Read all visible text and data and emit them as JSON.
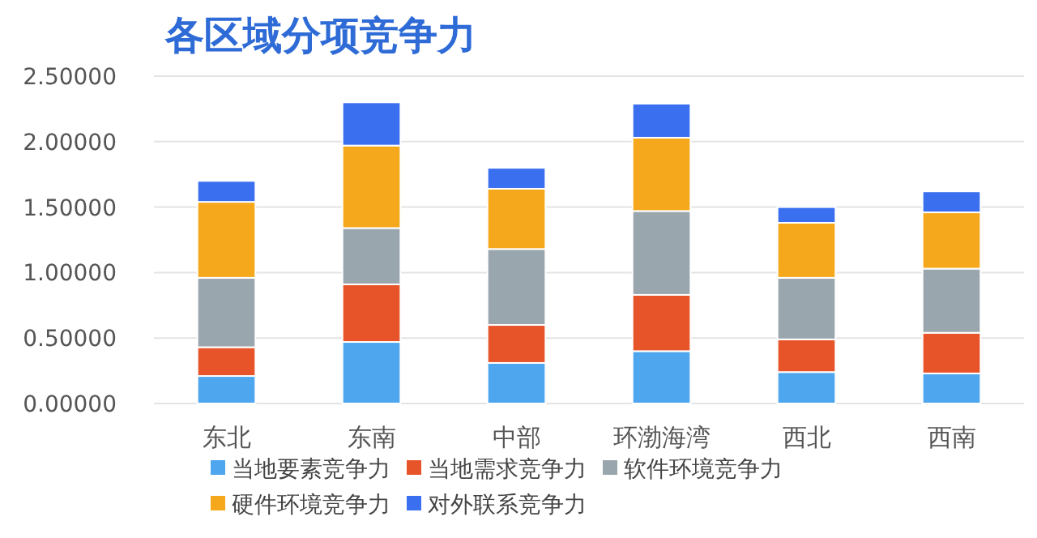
{
  "chart_data": {
    "type": "bar",
    "title": "各区域分项竞争力",
    "stacked": true,
    "categories": [
      "东北",
      "东南",
      "中部",
      "环渤海湾",
      "西北",
      "西南"
    ],
    "series": [
      {
        "name": "当地要素竞争力",
        "color": "#4da6ee",
        "values": [
          0.21,
          0.47,
          0.31,
          0.4,
          0.24,
          0.23
        ]
      },
      {
        "name": "当地需求竞争力",
        "color": "#e8542a",
        "values": [
          0.22,
          0.44,
          0.29,
          0.43,
          0.25,
          0.31
        ]
      },
      {
        "name": "软件环境竞争力",
        "color": "#9aa6ad",
        "values": [
          0.53,
          0.43,
          0.58,
          0.64,
          0.47,
          0.49
        ]
      },
      {
        "name": "硬件环境竞争力",
        "color": "#f5a81c",
        "values": [
          0.58,
          0.63,
          0.46,
          0.56,
          0.42,
          0.43
        ]
      },
      {
        "name": "对外联系竞争力",
        "color": "#3a6ff0",
        "values": [
          0.16,
          0.33,
          0.16,
          0.26,
          0.12,
          0.16
        ]
      }
    ],
    "ylim": [
      0,
      2.5
    ],
    "yticks": [
      {
        "value": 0,
        "label": "0.00000"
      },
      {
        "value": 0.5,
        "label": "0.50000"
      },
      {
        "value": 1,
        "label": "1.00000"
      },
      {
        "value": 1.5,
        "label": "1.50000"
      },
      {
        "value": 2,
        "label": "2.00000"
      },
      {
        "value": 2.5,
        "label": "2.50000"
      }
    ],
    "grid": "y",
    "legend": "bottom"
  }
}
